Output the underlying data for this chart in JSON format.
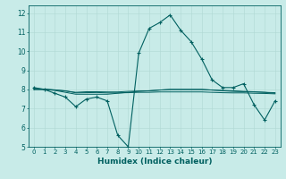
{
  "xlabel": "Humidex (Indice chaleur)",
  "ylabel": "",
  "bg_color": "#c8ebe8",
  "grid_color": "#b0d8d4",
  "line_color": "#006060",
  "xlim": [
    -0.5,
    23.5
  ],
  "ylim": [
    5,
    12.4
  ],
  "xticks": [
    0,
    1,
    2,
    3,
    4,
    5,
    6,
    7,
    8,
    9,
    10,
    11,
    12,
    13,
    14,
    15,
    16,
    17,
    18,
    19,
    20,
    21,
    22,
    23
  ],
  "yticks": [
    5,
    6,
    7,
    8,
    9,
    10,
    11,
    12
  ],
  "series": [
    {
      "x": [
        0,
        1,
        2,
        3,
        4,
        5,
        6,
        7,
        8,
        9,
        10,
        11,
        12,
        13,
        14,
        15,
        16,
        17,
        18,
        19,
        20,
        21,
        22,
        23
      ],
      "y": [
        8.1,
        8.0,
        7.8,
        7.6,
        7.1,
        7.5,
        7.6,
        7.4,
        5.6,
        5.0,
        9.9,
        11.2,
        11.5,
        11.9,
        11.1,
        10.5,
        9.6,
        8.5,
        8.1,
        8.1,
        8.3,
        7.2,
        6.4,
        7.4
      ],
      "marker": true
    },
    {
      "x": [
        0,
        1,
        2,
        3,
        4,
        5,
        6,
        7,
        8,
        9,
        10,
        11,
        12,
        13,
        14,
        15,
        16,
        17,
        18,
        19,
        20,
        21,
        22,
        23
      ],
      "y": [
        8.0,
        8.0,
        7.95,
        7.85,
        7.75,
        7.75,
        7.75,
        7.75,
        7.8,
        7.85,
        7.9,
        7.93,
        7.97,
        8.0,
        8.0,
        8.0,
        8.0,
        7.97,
        7.95,
        7.93,
        7.9,
        7.88,
        7.85,
        7.83
      ],
      "marker": false
    },
    {
      "x": [
        0,
        1,
        2,
        3,
        4,
        5,
        6,
        7,
        8,
        9,
        10,
        11,
        12,
        13,
        14,
        15,
        16,
        17,
        18,
        19,
        20,
        21,
        22,
        23
      ],
      "y": [
        8.05,
        8.02,
        7.98,
        7.92,
        7.85,
        7.88,
        7.88,
        7.87,
        7.87,
        7.9,
        7.92,
        7.93,
        7.97,
        8.0,
        8.0,
        8.0,
        8.0,
        7.97,
        7.93,
        7.9,
        7.88,
        7.87,
        7.85,
        7.8
      ],
      "marker": false
    },
    {
      "x": [
        0,
        1,
        2,
        3,
        4,
        5,
        6,
        7,
        8,
        9,
        10,
        11,
        12,
        13,
        14,
        15,
        16,
        17,
        18,
        19,
        20,
        21,
        22,
        23
      ],
      "y": [
        8.0,
        8.0,
        7.97,
        7.93,
        7.82,
        7.83,
        7.84,
        7.82,
        7.82,
        7.83,
        7.85,
        7.85,
        7.87,
        7.87,
        7.87,
        7.87,
        7.87,
        7.85,
        7.83,
        7.82,
        7.82,
        7.8,
        7.79,
        7.77
      ],
      "marker": false
    }
  ]
}
